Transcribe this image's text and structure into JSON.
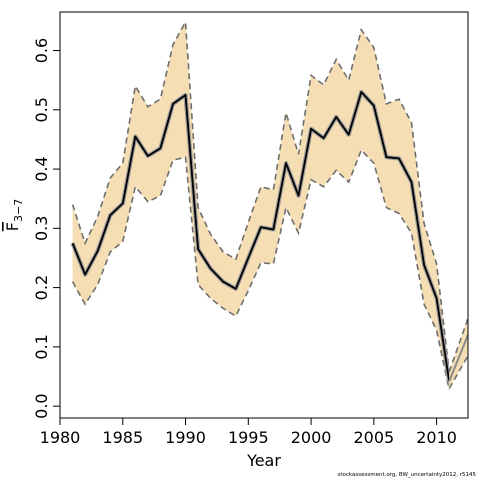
{
  "chart_data": {
    "type": "line",
    "xlabel": "Year",
    "ylabel": {
      "base": "F",
      "sub": "3−7"
    },
    "xlim": [
      1980,
      2012.5
    ],
    "ylim": [
      -0.02,
      0.665
    ],
    "xticks": [
      1980,
      1985,
      1990,
      1995,
      2000,
      2005,
      2010
    ],
    "yticks": [
      0.0,
      0.1,
      0.2,
      0.3,
      0.4,
      0.5,
      0.6
    ],
    "ytick_labels": [
      "0.0",
      "0.1",
      "0.2",
      "0.3",
      "0.4",
      "0.5",
      "0.6"
    ],
    "colors": {
      "band": "#f5deb3",
      "bound": "#6e6e6e",
      "estimate": "#000000",
      "estimate_halo": "#9a9a9a",
      "projection": "#8c8c8c"
    },
    "series": [
      {
        "x": [
          1981,
          1982,
          1983,
          1984,
          1985,
          1986,
          1987,
          1988,
          1989,
          1990,
          1991,
          1992,
          1993,
          1994,
          1995,
          1996,
          1997,
          1998,
          1999,
          2000,
          2001,
          2002,
          2003,
          2004,
          2005,
          2006,
          2007,
          2008,
          2009,
          2010,
          2011
        ],
        "values": [
          0.275,
          0.222,
          0.262,
          0.322,
          0.342,
          0.455,
          0.422,
          0.435,
          0.51,
          0.525,
          0.265,
          0.232,
          0.21,
          0.198,
          0.25,
          0.302,
          0.298,
          0.41,
          0.355,
          0.468,
          0.452,
          0.488,
          0.458,
          0.53,
          0.507,
          0.42,
          0.418,
          0.378,
          0.238,
          0.182,
          0.042
        ],
        "lower": [
          0.21,
          0.172,
          0.205,
          0.26,
          0.278,
          0.37,
          0.345,
          0.355,
          0.415,
          0.42,
          0.205,
          0.182,
          0.165,
          0.152,
          0.195,
          0.242,
          0.24,
          0.335,
          0.292,
          0.382,
          0.37,
          0.398,
          0.378,
          0.432,
          0.41,
          0.335,
          0.325,
          0.292,
          0.172,
          0.128,
          0.028
        ],
        "upper": [
          0.34,
          0.275,
          0.32,
          0.385,
          0.41,
          0.54,
          0.505,
          0.518,
          0.61,
          0.648,
          0.335,
          0.29,
          0.26,
          0.248,
          0.31,
          0.37,
          0.365,
          0.495,
          0.425,
          0.558,
          0.542,
          0.585,
          0.55,
          0.635,
          0.605,
          0.51,
          0.518,
          0.478,
          0.308,
          0.24,
          0.058
        ]
      },
      {
        "x": [
          2011,
          2012.5
        ],
        "values": [
          0.042,
          0.12
        ],
        "lower": [
          0.03,
          0.085
        ],
        "upper": [
          0.058,
          0.148
        ]
      }
    ]
  },
  "footer": "stockassessment.org, BW_uncertainty2012, r5145"
}
